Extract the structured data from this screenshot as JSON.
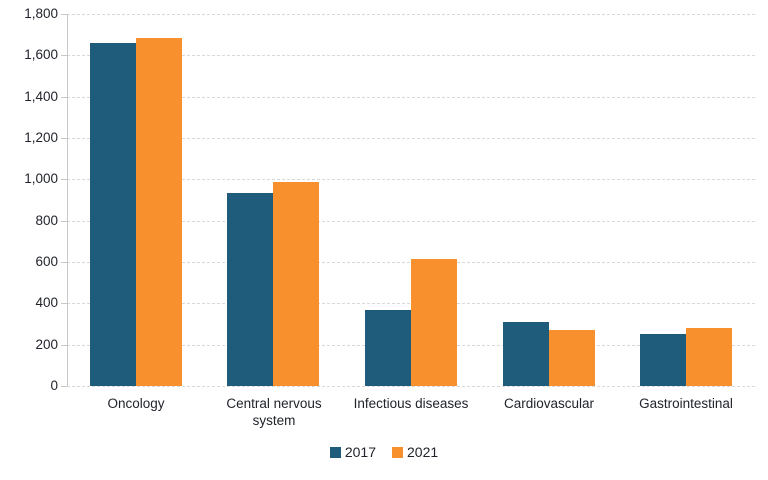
{
  "chart_data": {
    "type": "bar",
    "title": "",
    "categories": [
      "Oncology",
      "Central nervous system",
      "Infectious diseases",
      "Cardiovascular",
      "Gastrointestinal"
    ],
    "series": [
      {
        "name": "2017",
        "color": "#1f5c7b",
        "values": [
          1660,
          935,
          370,
          310,
          250
        ]
      },
      {
        "name": "2021",
        "color": "#f8902d",
        "values": [
          1685,
          985,
          615,
          270,
          280
        ]
      }
    ],
    "xlabel": "",
    "ylabel": "",
    "ylim": [
      0,
      1800
    ],
    "ytick_step": 200,
    "ytick_labels": [
      "0",
      "200",
      "400",
      "600",
      "800",
      "1,000",
      "1,200",
      "1,400",
      "1,600",
      "1,800"
    ],
    "grid": true,
    "legend_position": "bottom"
  },
  "colors": {
    "background": "#ffffff",
    "gridline": "#d9d9d9",
    "axis": "#c8c8c8",
    "text": "#21242c",
    "series_2017": "#1f5c7b",
    "series_2021": "#f8902d"
  }
}
